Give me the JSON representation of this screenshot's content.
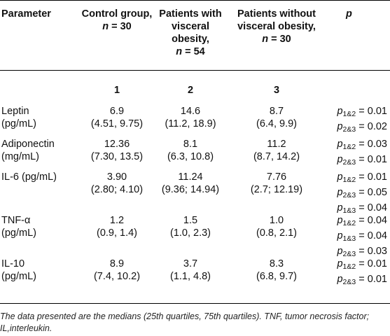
{
  "table": {
    "headers": {
      "parameter": "Parameter",
      "control": [
        "Control group,",
        "n = 30"
      ],
      "visceral": [
        "Patients with",
        "visceral",
        "obesity,",
        "n = 54"
      ],
      "nonvisceral": [
        "Patients without",
        "visceral obesity,",
        "n = 30"
      ],
      "p": "p"
    },
    "col_numbers": [
      "1",
      "2",
      "3"
    ],
    "rows": [
      {
        "param": [
          "Leptin",
          "(pg/mL)"
        ],
        "c1": [
          "6.9",
          "(4.51, 9.75)"
        ],
        "c2": [
          "14.6",
          "(11.2, 18.9)"
        ],
        "c3": [
          "8.7",
          "(6.4, 9.9)"
        ],
        "p": [
          {
            "sub": "1&2",
            "val": "0.01"
          },
          {
            "sub": "2&3",
            "val": "0.02"
          }
        ]
      },
      {
        "param": [
          "Adiponectin",
          "(mg/mL)"
        ],
        "c1": [
          "12.36",
          "(7.30, 13.5)"
        ],
        "c2": [
          "8.1",
          "(6.3, 10.8)"
        ],
        "c3": [
          "11.2",
          "(8.7, 14.2)"
        ],
        "p": [
          {
            "sub": "1&2",
            "val": "0.03"
          },
          {
            "sub": "2&3",
            "val": "0.01"
          }
        ]
      },
      {
        "param": [
          "IL-6 (pg/mL)",
          ""
        ],
        "c1": [
          "3.90",
          "(2.80; 4.10)"
        ],
        "c2": [
          "11.24",
          "(9.36; 14.94)"
        ],
        "c3": [
          "7.76",
          "(2.7; 12.19)"
        ],
        "p": [
          {
            "sub": "1&2",
            "val": "0.01"
          },
          {
            "sub": "2&3",
            "val": "0.05"
          },
          {
            "sub": "1&3",
            "val": "0.04"
          }
        ]
      },
      {
        "param": [
          "TNF-α",
          "(pg/mL)"
        ],
        "c1": [
          "1.2",
          "(0.9, 1.4)"
        ],
        "c2": [
          "1.5",
          "(1.0, 2.3)"
        ],
        "c3": [
          "1.0",
          "(0.8, 2.1)"
        ],
        "p": [
          {
            "sub": "1&2",
            "val": "0.04"
          },
          {
            "sub": "1&3",
            "val": "0.04"
          },
          {
            "sub": "2&3",
            "val": "0.03"
          }
        ]
      },
      {
        "param": [
          "IL-10",
          "(pg/mL)"
        ],
        "c1": [
          "8.9",
          "(7.4, 10.2)"
        ],
        "c2": [
          "3.7",
          "(1.1, 4.8)"
        ],
        "c3": [
          "8.3",
          "(6.8, 9.7)"
        ],
        "p": [
          {
            "sub": "1&2",
            "val": "0.01"
          },
          {
            "sub": "2&3",
            "val": "0.01"
          }
        ]
      }
    ],
    "footnote": "The data presented are the medians (25th quartiles, 75th quartiles). TNF, tumor necrosis factor; IL,interleukin."
  }
}
